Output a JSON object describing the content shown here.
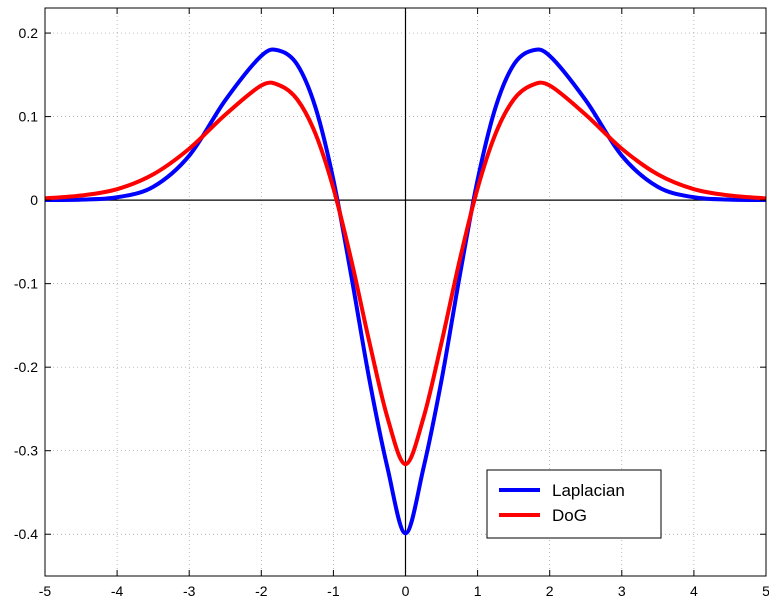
{
  "chart_data": {
    "type": "line",
    "title": "",
    "xlabel": "",
    "ylabel": "",
    "xlim": [
      -5,
      5
    ],
    "ylim": [
      -0.45,
      0.23
    ],
    "xticks": [
      -5,
      -4,
      -3,
      -2,
      -1,
      0,
      1,
      2,
      3,
      4,
      5
    ],
    "yticks": [
      0.2,
      0.1,
      0,
      -0.1,
      -0.2,
      -0.3,
      -0.4
    ],
    "xtick_labels": [
      "-5",
      "-4",
      "-3",
      "-2",
      "-1",
      "0",
      "1",
      "2",
      "3",
      "4",
      "5"
    ],
    "ytick_labels": [
      "0.2",
      "0.1",
      "0",
      "-0.1",
      "-0.2",
      "-0.3",
      "-0.4"
    ],
    "grid": true,
    "legend_position": "bottom-right",
    "series": [
      {
        "name": "Laplacian",
        "color": "#0000ff",
        "x": [
          -5,
          -4.5,
          -4,
          -3.5,
          -3,
          -2.5,
          -2,
          -1.75,
          -1.5,
          -1.25,
          -1,
          -0.75,
          -0.5,
          -0.25,
          0,
          0.25,
          0.5,
          0.75,
          1,
          1.25,
          1.5,
          1.75,
          2,
          2.5,
          3,
          3.5,
          4,
          4.5,
          5
        ],
        "y": [
          0.0001,
          0.0006,
          0.0034,
          0.0159,
          0.0532,
          0.1195,
          0.1727,
          0.1789,
          0.162,
          0.1113,
          0.0242,
          -0.0917,
          -0.2154,
          -0.3204,
          -0.3989,
          -0.3204,
          -0.2154,
          -0.0917,
          0.0242,
          0.1113,
          0.162,
          0.1789,
          0.1727,
          0.1195,
          0.0532,
          0.0159,
          0.0034,
          0.0006,
          0.0001
        ]
      },
      {
        "name": "DoG",
        "color": "#ff0000",
        "x": [
          -5,
          -4.5,
          -4,
          -3.5,
          -3,
          -2.5,
          -2,
          -1.75,
          -1.5,
          -1.25,
          -1,
          -0.75,
          -0.5,
          -0.25,
          0,
          0.25,
          0.5,
          0.75,
          1,
          1.25,
          1.5,
          1.75,
          2,
          2.5,
          3,
          3.5,
          4,
          4.5,
          5
        ],
        "y": [
          0.0021,
          0.0055,
          0.0131,
          0.0308,
          0.0615,
          0.1022,
          0.1372,
          0.1375,
          0.1203,
          0.0797,
          0.0141,
          -0.0725,
          -0.1704,
          -0.2604,
          -0.3161,
          -0.2604,
          -0.1704,
          -0.0725,
          0.0141,
          0.0797,
          0.1203,
          0.1375,
          0.1372,
          0.1022,
          0.0615,
          0.0308,
          0.0131,
          0.0055,
          0.0021
        ]
      }
    ]
  }
}
